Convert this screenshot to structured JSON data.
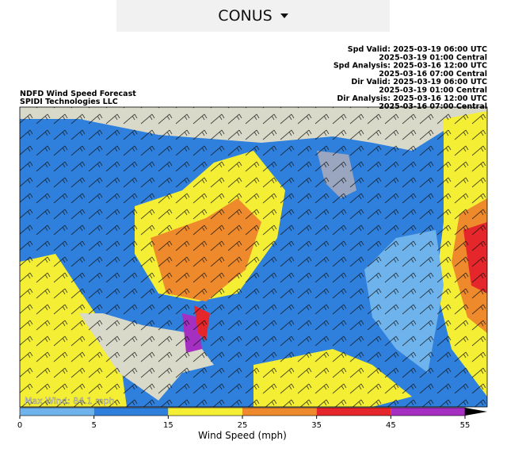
{
  "header": {
    "selector": "CONUS"
  },
  "map": {
    "title_lines": [
      "NDFD Wind Speed Forecast",
      "SPIDI Technologies LLC"
    ],
    "info_lines": [
      "Spd Valid: 2025-03-19 06:00 UTC",
      "2025-03-19 01:00 Central",
      "Spd Analysis: 2025-03-16 12:00 UTC",
      "2025-03-16 07:00 Central",
      "Dir Valid: 2025-03-19 06:00 UTC",
      "2025-03-19 01:00 Central",
      "Dir Analysis: 2025-03-16 12:00 UTC",
      "2025-03-16 07:00 Central"
    ],
    "max_wind": "Max Wind: 84.1 mph"
  },
  "colorbar": {
    "label": "Wind Speed (mph)",
    "ticks": [
      0,
      5,
      15,
      25,
      35,
      45,
      55
    ],
    "colors": [
      "#6fb3ec",
      "#2f7fdc",
      "#f4ef35",
      "#ee8a2c",
      "#e5262a",
      "#a52fc0"
    ]
  }
}
